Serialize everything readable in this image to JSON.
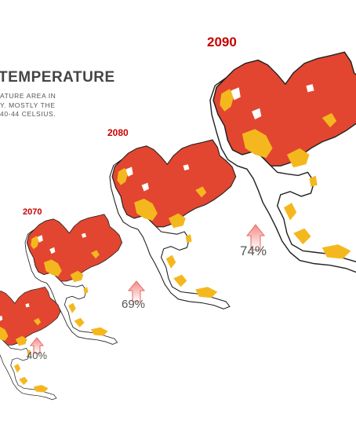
{
  "title": "TEMPERATURE",
  "description": [
    "ATURE AREA IN",
    "Y. MOSTLY THE",
    "40-44 CELSIUS."
  ],
  "maps": [
    {
      "year": "",
      "percent": "40%"
    },
    {
      "year": "2070",
      "percent": "69%"
    },
    {
      "year": "2080",
      "percent": "74%"
    },
    {
      "year": "2090",
      "percent": ""
    }
  ],
  "colors": {
    "hot": "#e24630",
    "warm": "#f4b81e",
    "outline": "#222222",
    "arrow": "#f6b3b0",
    "year_text": "#c90000"
  }
}
